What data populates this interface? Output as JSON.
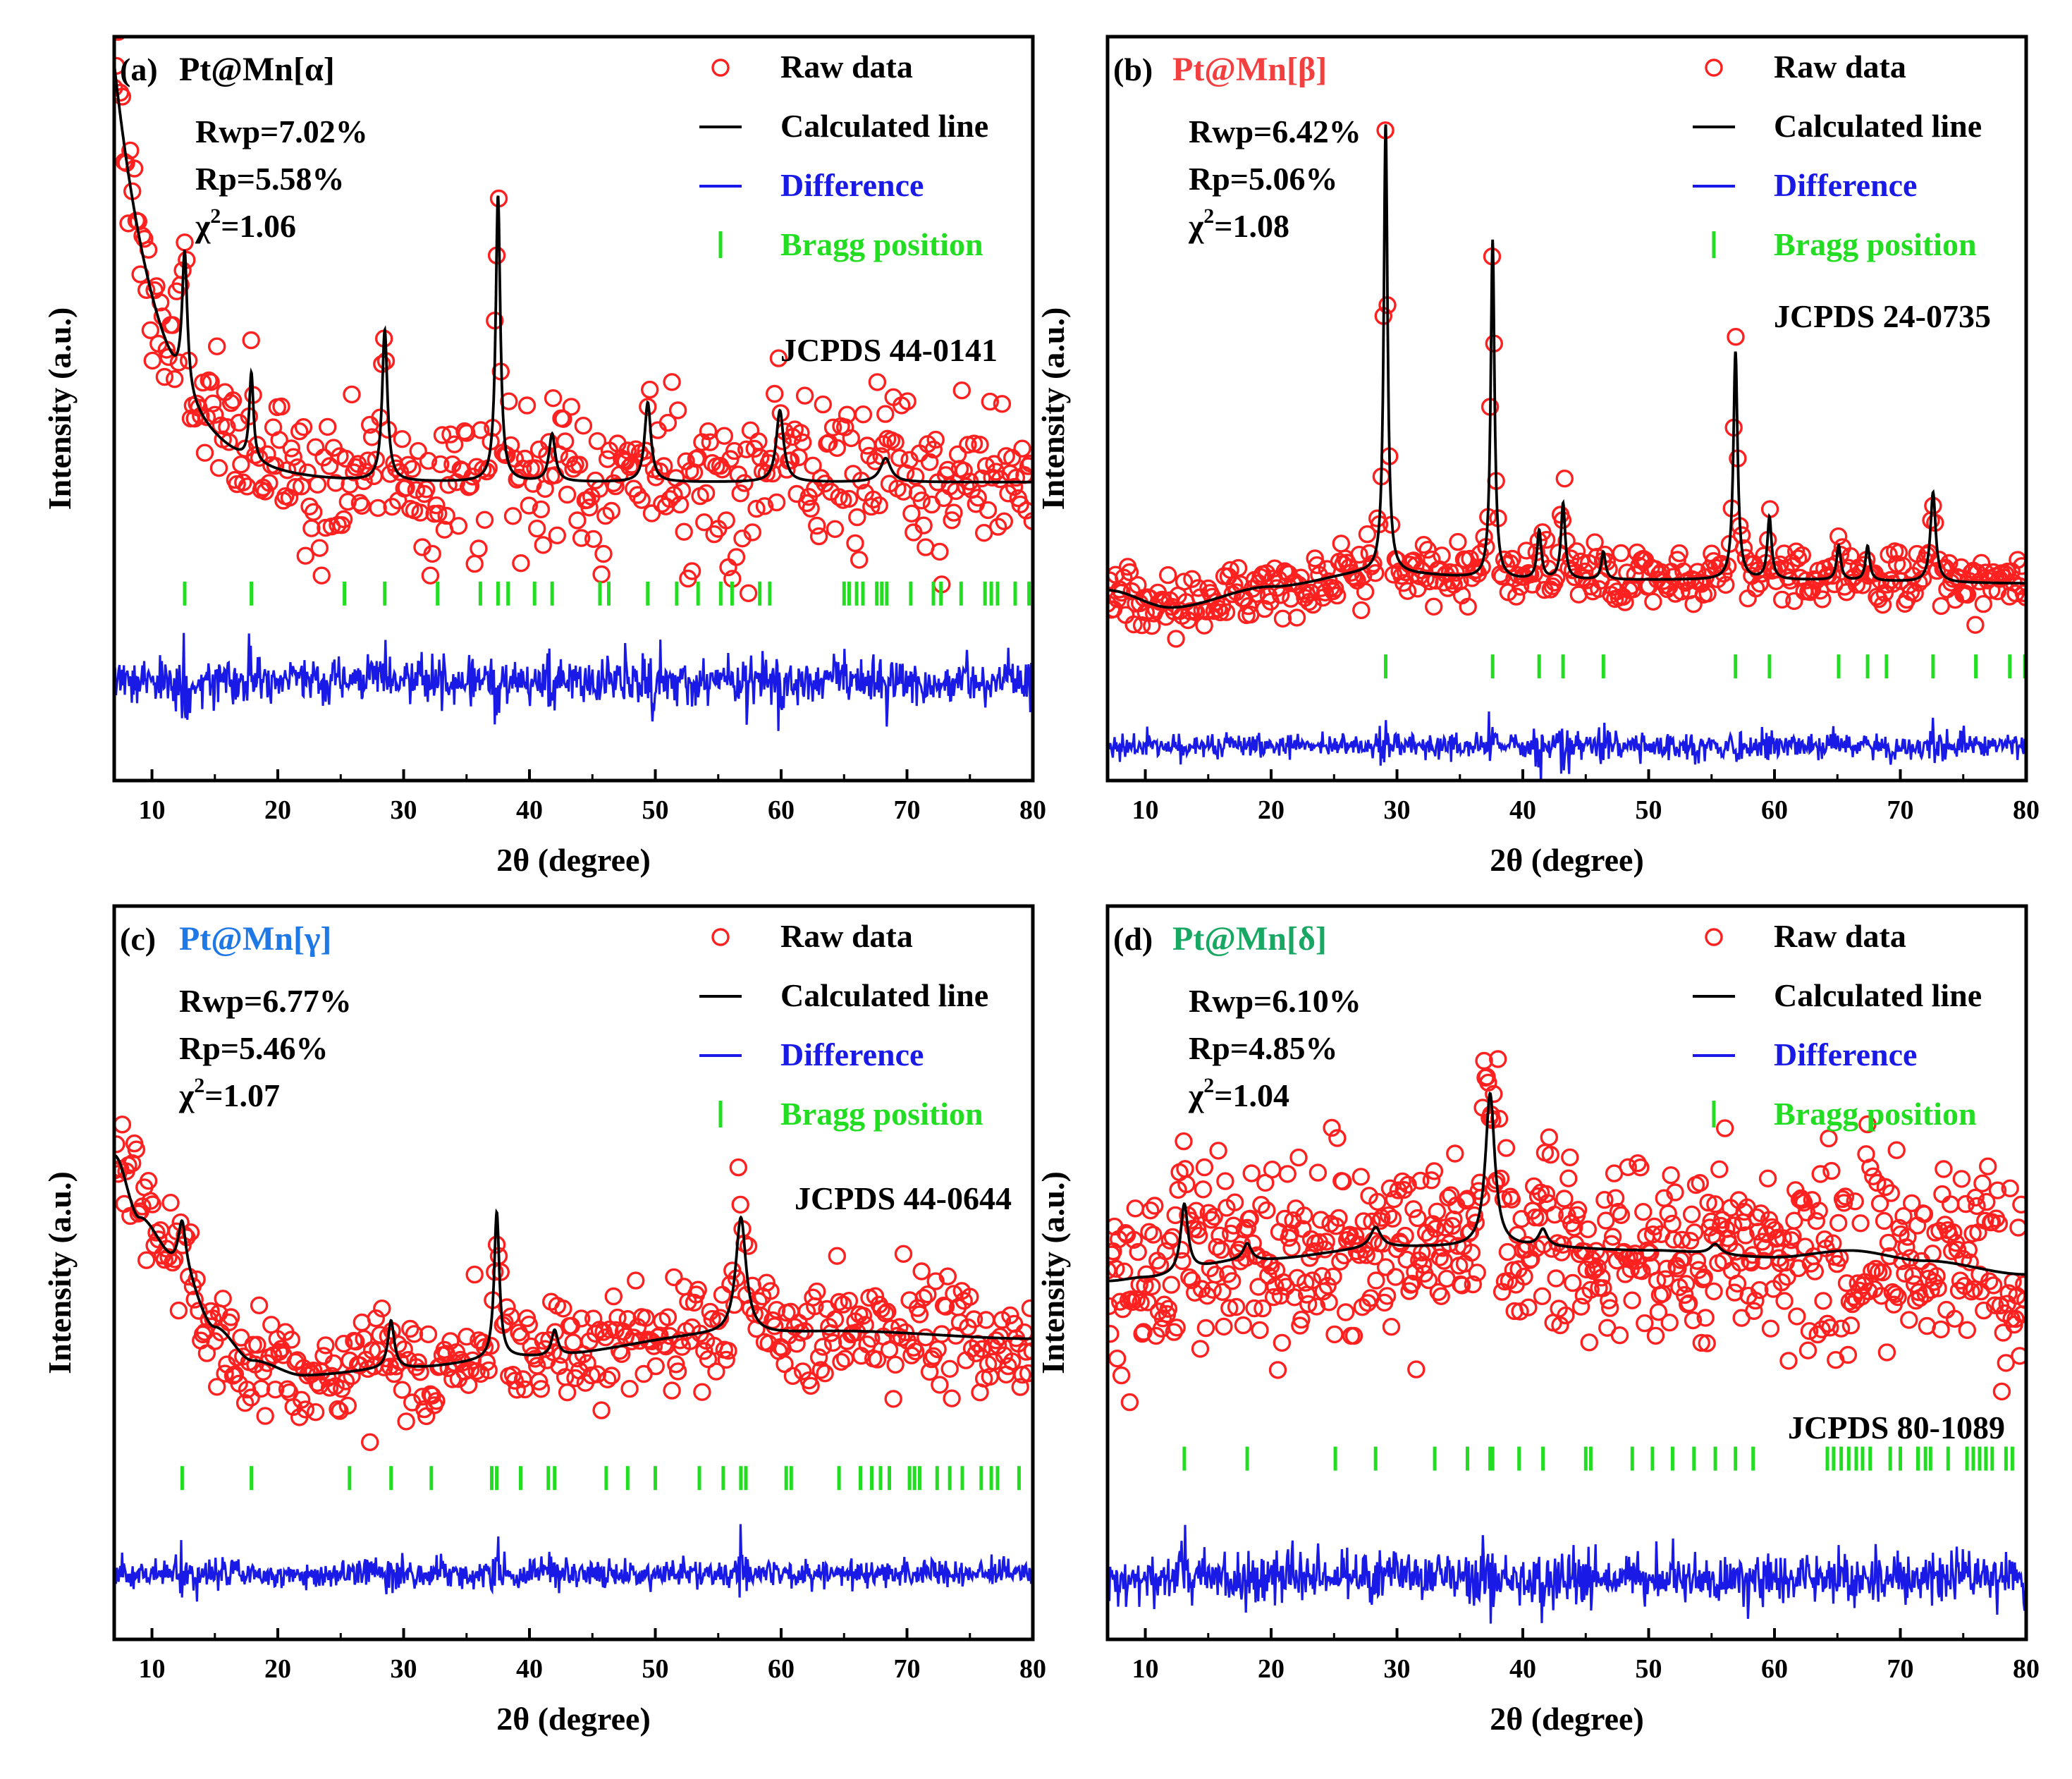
{
  "colors": {
    "raw": "#ff2020",
    "calc": "#000000",
    "diff": "#1a1ae6",
    "bragg": "#22dd22",
    "legend_diff_text": "#1a1ae6",
    "legend_bragg_text": "#22dd22"
  },
  "legend": {
    "raw": "Raw data",
    "calc": "Calculated line",
    "diff": "Difference",
    "bragg": "Bragg position"
  },
  "chart_data": [
    {
      "type": "scatter",
      "panel": "(a)",
      "title": "Pt@Mn[α]",
      "title_color": "#000000",
      "stats": [
        "Rwp=7.02%",
        "Rp=5.58%",
        "χ²=1.06"
      ],
      "stats_parts": [
        {
          "pre": "Rwp=7.02%",
          "sup": "",
          "post": ""
        },
        {
          "pre": "Rp=5.58%",
          "sup": "",
          "post": ""
        },
        {
          "pre": "χ",
          "sup": "2",
          "post": "=1.06"
        }
      ],
      "jcpds": "JCPDS 44-0141",
      "xlabel": "2θ (degree)",
      "ylabel": "Intensity (a.u.)",
      "xlim": [
        7,
        80
      ],
      "xticks": [
        10,
        20,
        30,
        40,
        50,
        60,
        70,
        80
      ],
      "ylim": [
        -0.55,
        1.32
      ],
      "background": {
        "type": "exp",
        "a": 0.2,
        "b": 1.05,
        "k": 0.27,
        "x0": 7
      },
      "peaks": [
        [
          12.6,
          0.35,
          0.25
        ],
        [
          17.9,
          0.22,
          0.2
        ],
        [
          28.5,
          0.38,
          0.25
        ],
        [
          37.5,
          0.72,
          0.22
        ],
        [
          41.8,
          0.12,
          0.3
        ],
        [
          49.4,
          0.2,
          0.3
        ],
        [
          59.9,
          0.18,
          0.35
        ],
        [
          68.3,
          0.06,
          0.5
        ]
      ],
      "noise": 0.1,
      "raw_step": 0.16,
      "bragg_y": -0.08,
      "diff_y": -0.3,
      "diff_amp": 0.028,
      "bragg": [
        12.6,
        17.9,
        25.3,
        28.5,
        32.7,
        36.1,
        37.5,
        38.3,
        40.4,
        41.8,
        45.6,
        46.3,
        49.4,
        51.7,
        53.4,
        55.2,
        56.1,
        58.3,
        59.1,
        65.0,
        65.4,
        66.0,
        66.5,
        67.6,
        68.0,
        68.4,
        70.3,
        72.1,
        72.7,
        74.3,
        76.2,
        76.7,
        77.2,
        78.6,
        79.7
      ]
    },
    {
      "type": "scatter",
      "panel": "(b)",
      "title": "Pt@Mn[β]",
      "title_color": "#f24040",
      "stats": [
        "Rwp=6.42%",
        "Rp=5.06%",
        "χ²=1.08"
      ],
      "stats_parts": [
        {
          "pre": "Rwp=6.42%",
          "sup": "",
          "post": ""
        },
        {
          "pre": "Rp=5.06%",
          "sup": "",
          "post": ""
        },
        {
          "pre": "χ",
          "sup": "2",
          "post": "=1.08"
        }
      ],
      "jcpds": "JCPDS 24-0735",
      "xlabel": "2θ (degree)",
      "ylabel": "Intensity (a.u.)",
      "xlim": [
        7,
        80
      ],
      "xticks": [
        10,
        20,
        30,
        40,
        50,
        60,
        70,
        80
      ],
      "ylim": [
        -0.5,
        1.65
      ],
      "background": {
        "type": "poly",
        "points": [
          [
            7,
            0.05
          ],
          [
            12,
            0.0
          ],
          [
            20,
            0.06
          ],
          [
            28,
            0.1
          ],
          [
            40,
            0.08
          ],
          [
            60,
            0.08
          ],
          [
            80,
            0.07
          ]
        ]
      },
      "peaks": [
        [
          29.1,
          1.3,
          0.18
        ],
        [
          37.6,
          0.98,
          0.18
        ],
        [
          41.3,
          0.14,
          0.2
        ],
        [
          43.2,
          0.22,
          0.2
        ],
        [
          46.4,
          0.08,
          0.2
        ],
        [
          56.9,
          0.66,
          0.2
        ],
        [
          59.6,
          0.18,
          0.2
        ],
        [
          65.1,
          0.1,
          0.2
        ],
        [
          67.4,
          0.1,
          0.2
        ],
        [
          72.6,
          0.26,
          0.25
        ]
      ],
      "noise": 0.045,
      "raw_step": 0.16,
      "bragg_y": -0.17,
      "diff_y": -0.4,
      "diff_amp": 0.018,
      "bragg": [
        29.1,
        37.6,
        41.3,
        43.2,
        46.4,
        56.9,
        59.6,
        65.1,
        67.4,
        68.9,
        72.6,
        76.0,
        78.7,
        79.9
      ]
    },
    {
      "type": "scatter",
      "panel": "(c)",
      "title": "Pt@Mn[γ]",
      "title_color": "#1e78e6",
      "stats": [
        "Rwp=6.77%",
        "Rp=5.46%",
        "χ²=1.07"
      ],
      "stats_parts": [
        {
          "pre": "Rwp=6.77%",
          "sup": "",
          "post": ""
        },
        {
          "pre": "Rp=5.46%",
          "sup": "",
          "post": ""
        },
        {
          "pre": "χ",
          "sup": "2",
          "post": "=1.07"
        }
      ],
      "jcpds": "JCPDS 44-0644",
      "xlabel": "2θ (degree)",
      "ylabel": "Intensity (a.u.)",
      "xlim": [
        7,
        80
      ],
      "xticks": [
        10,
        20,
        30,
        40,
        50,
        60,
        70,
        80
      ],
      "ylim": [
        -0.7,
        1.3
      ],
      "background": {
        "type": "poly",
        "points": [
          [
            7,
            0.62
          ],
          [
            9,
            0.45
          ],
          [
            12,
            0.33
          ],
          [
            15,
            0.15
          ],
          [
            18,
            0.06
          ],
          [
            22,
            0.02
          ],
          [
            30,
            0.04
          ],
          [
            40,
            0.07
          ],
          [
            55,
            0.13
          ],
          [
            65,
            0.14
          ],
          [
            80,
            0.12
          ]
        ]
      },
      "peaks": [
        [
          12.4,
          0.12,
          0.35
        ],
        [
          29.0,
          0.13,
          0.3
        ],
        [
          37.4,
          0.4,
          0.25
        ],
        [
          42.0,
          0.07,
          0.3
        ],
        [
          56.8,
          0.32,
          0.5
        ]
      ],
      "noise": 0.085,
      "raw_step": 0.16,
      "bragg_y": -0.26,
      "diff_y": -0.52,
      "diff_amp": 0.02,
      "bragg": [
        12.4,
        17.9,
        25.7,
        29.0,
        32.2,
        37.0,
        37.4,
        39.3,
        41.5,
        42.0,
        46.1,
        47.8,
        50.0,
        53.5,
        55.4,
        56.8,
        57.2,
        60.4,
        60.8,
        64.6,
        66.3,
        67.2,
        67.9,
        68.6,
        70.2,
        70.6,
        71.0,
        72.4,
        73.4,
        74.4,
        75.9,
        76.7,
        77.2,
        78.9
      ]
    },
    {
      "type": "scatter",
      "panel": "(d)",
      "title": "Pt@Mn[δ]",
      "title_color": "#18a864",
      "stats": [
        "Rwp=6.10%",
        "Rp=4.85%",
        "χ²=1.04"
      ],
      "stats_parts": [
        {
          "pre": "Rwp=6.10%",
          "sup": "",
          "post": ""
        },
        {
          "pre": "Rp=4.85%",
          "sup": "",
          "post": ""
        },
        {
          "pre": "χ",
          "sup": "2",
          "post": "=1.04"
        }
      ],
      "jcpds": "JCPDS 80-1089",
      "xlabel": "2θ (degree)",
      "ylabel": "Intensity (a.u.)",
      "xlim": [
        7,
        80
      ],
      "xticks": [
        10,
        20,
        30,
        40,
        50,
        60,
        70,
        80
      ],
      "ylim": [
        -0.8,
        1.35
      ],
      "background": {
        "type": "poly",
        "points": [
          [
            7,
            0.25
          ],
          [
            10,
            0.26
          ],
          [
            18,
            0.31
          ],
          [
            30,
            0.35
          ],
          [
            40,
            0.35
          ],
          [
            50,
            0.34
          ],
          [
            60,
            0.32
          ],
          [
            66,
            0.34
          ],
          [
            72,
            0.31
          ],
          [
            80,
            0.27
          ]
        ]
      },
      "peaks": [
        [
          13.1,
          0.2,
          0.35
        ],
        [
          18.1,
          0.05,
          0.4
        ],
        [
          28.3,
          0.06,
          0.5
        ],
        [
          37.4,
          0.45,
          0.45
        ],
        [
          41.6,
          0.05,
          0.4
        ],
        [
          55.3,
          0.03,
          0.5
        ]
      ],
      "noise": 0.15,
      "raw_step": 0.11,
      "bragg_y": -0.27,
      "diff_y": -0.62,
      "diff_amp": 0.036,
      "bragg": [
        13.1,
        18.1,
        25.1,
        28.3,
        33.0,
        35.6,
        37.4,
        37.6,
        39.7,
        41.6,
        45.0,
        45.4,
        48.7,
        50.3,
        51.9,
        53.6,
        55.3,
        56.9,
        58.3,
        64.2,
        64.7,
        65.3,
        65.9,
        66.5,
        67.0,
        67.6,
        69.2,
        70.0,
        71.4,
        72.0,
        72.4,
        73.8,
        75.3,
        75.8,
        76.3,
        76.8,
        77.3,
        78.4,
        78.9
      ]
    }
  ]
}
